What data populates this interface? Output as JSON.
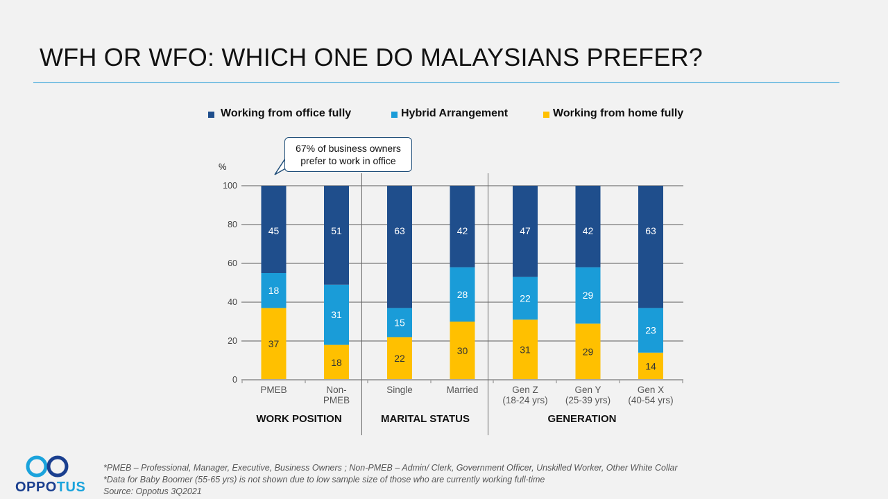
{
  "title": "WFH OR WFO: WHICH ONE DO MALAYSIANS PREFER?",
  "legend": [
    {
      "label": "Working from office fully",
      "color": "#1f4e8c"
    },
    {
      "label": "Hybrid Arrangement",
      "color": "#1a9cd8"
    },
    {
      "label": "Working from home fully",
      "color": "#ffc000"
    }
  ],
  "callout": {
    "line1": "67% of business owners",
    "line2": "prefer to work in office"
  },
  "chart_data": {
    "type": "bar",
    "stacked": true,
    "ylabel": "%",
    "ylim": [
      0,
      100
    ],
    "yticks": [
      0,
      20,
      40,
      60,
      80,
      100
    ],
    "categories": [
      [
        "PMEB"
      ],
      [
        "Non-",
        "PMEB"
      ],
      [
        "Single"
      ],
      [
        "Married"
      ],
      [
        "Gen Z",
        "(18-24 yrs)"
      ],
      [
        "Gen Y",
        "(25-39 yrs)"
      ],
      [
        "Gen X",
        "(40-54 yrs)"
      ]
    ],
    "series": [
      {
        "name": "Working from home fully",
        "color": "#ffc000",
        "values": [
          37,
          18,
          22,
          30,
          31,
          29,
          14
        ]
      },
      {
        "name": "Hybrid Arrangement",
        "color": "#1a9cd8",
        "values": [
          18,
          31,
          15,
          28,
          22,
          29,
          23
        ]
      },
      {
        "name": "Working from office fully",
        "color": "#1f4e8c",
        "values": [
          45,
          51,
          63,
          42,
          47,
          42,
          63
        ]
      }
    ],
    "groups": [
      {
        "label": "WORK POSITION",
        "start": 0,
        "end": 1
      },
      {
        "label": "MARITAL STATUS",
        "start": 2,
        "end": 3
      },
      {
        "label": "GENERATION",
        "start": 4,
        "end": 6
      }
    ]
  },
  "footnotes": [
    "*PMEB – Professional, Manager, Executive, Business Owners ; Non-PMEB – Admin/ Clerk, Government Officer, Unskilled Worker, Other White Collar",
    "*Data for Baby Boomer (55-65 yrs) is not shown due to low sample size of those who are currently working full-time",
    "Source: Oppotus 3Q2021"
  ],
  "logo": {
    "text_a": "OPPO",
    "text_b": "TUS"
  }
}
